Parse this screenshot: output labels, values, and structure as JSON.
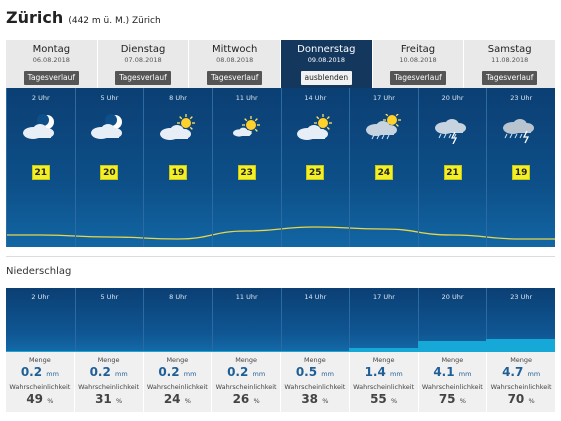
{
  "location": {
    "city": "Zürich",
    "detail": "(442 m ü. M.) Zürich"
  },
  "days": [
    {
      "name": "Montag",
      "date": "06.08.2018",
      "button": "Tagesverlauf",
      "active": false
    },
    {
      "name": "Dienstag",
      "date": "07.08.2018",
      "button": "Tagesverlauf",
      "active": false
    },
    {
      "name": "Mittwoch",
      "date": "08.08.2018",
      "button": "Tagesverlauf",
      "active": false
    },
    {
      "name": "Donnerstag",
      "date": "09.08.2018",
      "button": "ausblenden",
      "active": true
    },
    {
      "name": "Freitag",
      "date": "10.08.2018",
      "button": "Tagesverlauf",
      "active": false
    },
    {
      "name": "Samstag",
      "date": "11.08.2018",
      "button": "Tagesverlauf",
      "active": false
    }
  ],
  "forecast": [
    {
      "time": "2 Uhr",
      "icon": "moon-partly-cloudy-icon",
      "temp": "21"
    },
    {
      "time": "5 Uhr",
      "icon": "moon-partly-cloudy-icon",
      "temp": "20"
    },
    {
      "time": "8 Uhr",
      "icon": "sun-partly-cloudy-icon",
      "temp": "19"
    },
    {
      "time": "11 Uhr",
      "icon": "sun-light-clouds-icon",
      "temp": "23"
    },
    {
      "time": "14 Uhr",
      "icon": "sun-partly-cloudy-icon",
      "temp": "25"
    },
    {
      "time": "17 Uhr",
      "icon": "cloud-rain-icon",
      "temp": "24"
    },
    {
      "time": "20 Uhr",
      "icon": "thunderstorm-icon",
      "temp": "21"
    },
    {
      "time": "23 Uhr",
      "icon": "thunderstorm-rain-icon",
      "temp": "19"
    }
  ],
  "colors": {
    "sky": "#0d4f88",
    "active_tab": "#14375e",
    "temp_badge": "#f2ef27",
    "temp_line": "#e8d64a",
    "rain_bar": "#16a9d8",
    "amount": "#1f5f97"
  },
  "precipitation": {
    "section_label": "Niederschlag",
    "amount_label": "Menge",
    "amount_unit": "mm",
    "probability_label": "Wahrscheinlichkeit",
    "probability_unit": "%",
    "hours": [
      {
        "time": "2 Uhr",
        "amount": "0.2",
        "probability": "49"
      },
      {
        "time": "5 Uhr",
        "amount": "0.2",
        "probability": "31"
      },
      {
        "time": "8 Uhr",
        "amount": "0.2",
        "probability": "24"
      },
      {
        "time": "11 Uhr",
        "amount": "0.2",
        "probability": "26"
      },
      {
        "time": "14 Uhr",
        "amount": "0.5",
        "probability": "38"
      },
      {
        "time": "17 Uhr",
        "amount": "1.4",
        "probability": "55"
      },
      {
        "time": "20 Uhr",
        "amount": "4.1",
        "probability": "75"
      },
      {
        "time": "23 Uhr",
        "amount": "4.7",
        "probability": "70"
      }
    ]
  }
}
